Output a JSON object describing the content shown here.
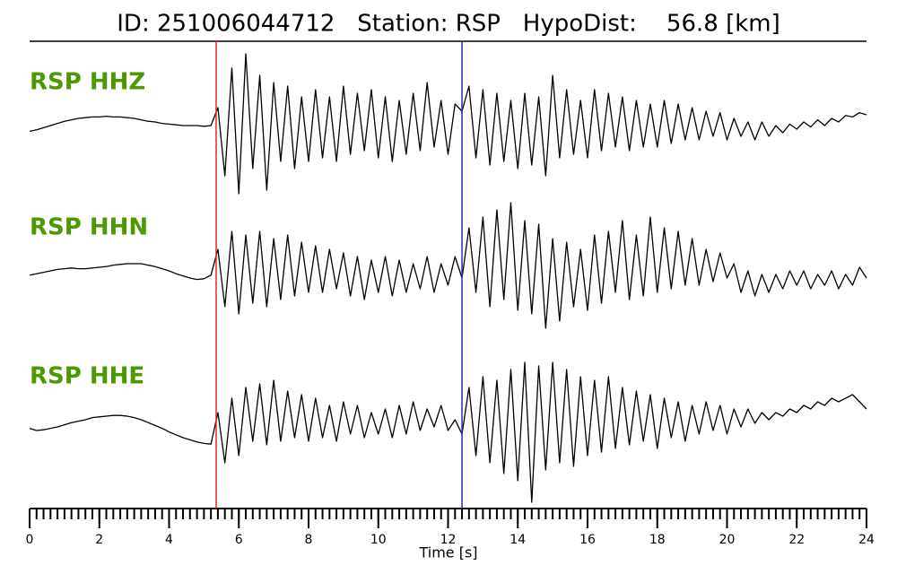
{
  "chart_data": {
    "type": "line",
    "title": "ID: 251006044712   Station: RSP   HypoDist:    56.8 [km]",
    "xlabel": "Time [s]",
    "xlim": [
      0,
      24
    ],
    "xticks": [
      0,
      2,
      4,
      6,
      8,
      10,
      12,
      14,
      16,
      18,
      20,
      22,
      24
    ],
    "xminorticks": [
      0,
      0.2,
      0.4,
      0.6,
      0.8,
      1,
      1.2,
      1.4,
      1.6,
      1.8,
      2,
      2.2,
      2.4,
      2.6,
      2.8,
      3,
      3.2,
      3.4,
      3.6,
      3.8,
      4,
      4.2,
      4.4,
      4.6,
      4.8,
      5,
      5.2,
      5.4,
      5.6,
      5.8,
      6,
      6.2,
      6.4,
      6.6,
      6.8,
      7,
      7.2,
      7.4,
      7.6,
      7.8,
      8,
      8.2,
      8.4,
      8.6,
      8.8,
      9,
      9.2,
      9.4,
      9.6,
      9.8,
      10,
      10.2,
      10.4,
      10.6,
      10.8,
      11,
      11.2,
      11.4,
      11.6,
      11.8,
      12,
      12.2,
      12.4,
      12.6,
      12.8,
      13,
      13.2,
      13.4,
      13.6,
      13.8,
      14,
      14.2,
      14.4,
      14.6,
      14.8,
      15,
      15.2,
      15.4,
      15.6,
      15.8,
      16,
      16.2,
      16.4,
      16.6,
      16.8,
      17,
      17.2,
      17.4,
      17.6,
      17.8,
      18,
      18.2,
      18.4,
      18.6,
      18.8,
      19,
      19.2,
      19.4,
      19.6,
      19.8,
      20,
      20.2,
      20.4,
      20.6,
      20.8,
      21,
      21.2,
      21.4,
      21.6,
      21.8,
      22,
      22.2,
      22.4,
      22.6,
      22.8,
      23,
      23.2,
      23.4,
      23.6,
      23.8,
      24
    ],
    "x": [
      0,
      0.2,
      0.4,
      0.6,
      0.8,
      1,
      1.2,
      1.4,
      1.6,
      1.8,
      2,
      2.2,
      2.4,
      2.6,
      2.8,
      3,
      3.2,
      3.4,
      3.6,
      3.8,
      4,
      4.2,
      4.4,
      4.6,
      4.8,
      5,
      5.2,
      5.4,
      5.6,
      5.8,
      6,
      6.2,
      6.4,
      6.6,
      6.8,
      7,
      7.2,
      7.4,
      7.6,
      7.8,
      8,
      8.2,
      8.4,
      8.6,
      8.8,
      9,
      9.2,
      9.4,
      9.6,
      9.8,
      10,
      10.2,
      10.4,
      10.6,
      10.8,
      11,
      11.2,
      11.4,
      11.6,
      11.8,
      12,
      12.2,
      12.4,
      12.6,
      12.8,
      13,
      13.2,
      13.4,
      13.6,
      13.8,
      14,
      14.2,
      14.4,
      14.6,
      14.8,
      15,
      15.2,
      15.4,
      15.6,
      15.8,
      16,
      16.2,
      16.4,
      16.6,
      16.8,
      17,
      17.2,
      17.4,
      17.6,
      17.8,
      18,
      18.2,
      18.4,
      18.6,
      18.8,
      19,
      19.2,
      19.4,
      19.6,
      19.8,
      20,
      20.2,
      20.4,
      20.6,
      20.8,
      21,
      21.2,
      21.4,
      21.6,
      21.8,
      22,
      22.2,
      22.4,
      22.6,
      22.8,
      23,
      23.2,
      23.4,
      23.6,
      23.8,
      24
    ],
    "ylim": [
      -1.2,
      1.2
    ],
    "label_color": "#4c9a00",
    "markers": [
      {
        "x": 5.35,
        "color": "#e8262b"
      },
      {
        "x": 12.4,
        "color": "#2a2ab5"
      }
    ],
    "series": [
      {
        "name": "RSP HHZ",
        "color": "#000000",
        "values": [
          -0.08,
          -0.06,
          -0.03,
          0,
          0.03,
          0.06,
          0.08,
          0.1,
          0.11,
          0.12,
          0.12,
          0.13,
          0.12,
          0.12,
          0.11,
          0.1,
          0.08,
          0.06,
          0.05,
          0.03,
          0.02,
          0.01,
          0.0,
          0.0,
          0.0,
          -0.01,
          0.0,
          0.25,
          -0.7,
          0.8,
          -0.95,
          1.0,
          -0.6,
          0.7,
          -0.9,
          0.6,
          -0.5,
          0.55,
          -0.6,
          0.4,
          -0.5,
          0.5,
          -0.45,
          0.4,
          -0.5,
          0.55,
          -0.4,
          0.45,
          -0.35,
          0.5,
          -0.45,
          0.4,
          -0.5,
          0.35,
          -0.4,
          0.45,
          -0.35,
          0.6,
          -0.3,
          0.35,
          -0.4,
          0.3,
          0.2,
          0.55,
          -0.45,
          0.5,
          -0.55,
          0.45,
          -0.5,
          0.35,
          -0.6,
          0.45,
          -0.55,
          0.4,
          -0.7,
          0.7,
          -0.45,
          0.5,
          -0.4,
          0.35,
          -0.45,
          0.5,
          -0.35,
          0.45,
          -0.3,
          0.4,
          -0.35,
          0.35,
          -0.3,
          0.3,
          -0.3,
          0.35,
          -0.25,
          0.3,
          -0.2,
          0.25,
          -0.2,
          0.2,
          -0.15,
          0.18,
          -0.2,
          0.1,
          -0.15,
          0.05,
          -0.2,
          0.05,
          -0.15,
          0.0,
          -0.1,
          0.02,
          -0.05,
          0.05,
          -0.02,
          0.08,
          0.0,
          0.1,
          0.05,
          0.14,
          0.12,
          0.18,
          0.15
        ]
      },
      {
        "name": "RSP HHN",
        "color": "#000000",
        "values": [
          -0.06,
          -0.04,
          -0.02,
          0,
          0.02,
          0.03,
          0.04,
          0.03,
          0.03,
          0.04,
          0.05,
          0.06,
          0.08,
          0.09,
          0.1,
          0.1,
          0.1,
          0.08,
          0.06,
          0.03,
          0.0,
          -0.04,
          -0.07,
          -0.1,
          -0.12,
          -0.11,
          -0.06,
          0.3,
          -0.5,
          0.55,
          -0.6,
          0.5,
          -0.45,
          0.55,
          -0.5,
          0.45,
          -0.4,
          0.5,
          -0.35,
          0.4,
          -0.3,
          0.35,
          -0.3,
          0.3,
          -0.25,
          0.25,
          -0.35,
          0.2,
          -0.4,
          0.15,
          -0.3,
          0.2,
          -0.35,
          0.15,
          -0.3,
          0.1,
          -0.25,
          0.2,
          -0.3,
          0.1,
          -0.2,
          0.2,
          -0.1,
          0.6,
          -0.3,
          0.75,
          -0.5,
          0.85,
          -0.4,
          0.95,
          -0.55,
          0.7,
          -0.6,
          0.65,
          -0.8,
          0.45,
          -0.7,
          0.4,
          -0.5,
          0.3,
          -0.55,
          0.5,
          -0.45,
          0.55,
          -0.3,
          0.7,
          -0.4,
          0.5,
          -0.35,
          0.75,
          -0.3,
          0.6,
          -0.25,
          0.55,
          -0.2,
          0.45,
          -0.2,
          0.3,
          -0.15,
          0.25,
          -0.1,
          0.1,
          -0.3,
          0.0,
          -0.35,
          -0.05,
          -0.3,
          -0.05,
          -0.25,
          0.0,
          -0.2,
          0.0,
          -0.25,
          -0.05,
          -0.2,
          0.0,
          -0.25,
          -0.05,
          -0.2,
          0.05,
          -0.1
        ]
      },
      {
        "name": "RSP HHE",
        "color": "#000000",
        "values": [
          -0.12,
          -0.15,
          -0.14,
          -0.12,
          -0.1,
          -0.07,
          -0.04,
          -0.02,
          0.0,
          0.03,
          0.04,
          0.05,
          0.06,
          0.06,
          0.05,
          0.03,
          0.0,
          -0.04,
          -0.08,
          -0.12,
          -0.17,
          -0.21,
          -0.25,
          -0.28,
          -0.31,
          -0.33,
          -0.34,
          0.1,
          -0.6,
          0.3,
          -0.5,
          0.45,
          -0.3,
          0.5,
          -0.35,
          0.55,
          -0.3,
          0.4,
          -0.25,
          0.35,
          -0.3,
          0.3,
          -0.25,
          0.2,
          -0.3,
          0.25,
          -0.2,
          0.2,
          -0.25,
          0.1,
          -0.2,
          0.15,
          -0.25,
          0.2,
          -0.2,
          0.25,
          -0.15,
          0.15,
          -0.1,
          0.2,
          -0.15,
          0.0,
          -0.2,
          0.45,
          -0.5,
          0.6,
          -0.6,
          0.55,
          -0.75,
          0.7,
          -0.85,
          0.8,
          -1.15,
          0.75,
          -0.7,
          0.8,
          -0.6,
          0.7,
          -0.65,
          0.6,
          -0.5,
          0.55,
          -0.45,
          0.6,
          -0.4,
          0.45,
          -0.35,
          0.4,
          -0.3,
          0.35,
          -0.4,
          0.3,
          -0.25,
          0.25,
          -0.3,
          0.2,
          -0.2,
          0.25,
          -0.15,
          0.2,
          -0.2,
          0.15,
          -0.1,
          0.15,
          -0.05,
          0.1,
          0.0,
          0.1,
          0.05,
          0.15,
          0.1,
          0.2,
          0.15,
          0.25,
          0.2,
          0.3,
          0.25,
          0.3,
          0.35,
          0.25,
          0.15
        ]
      }
    ]
  }
}
